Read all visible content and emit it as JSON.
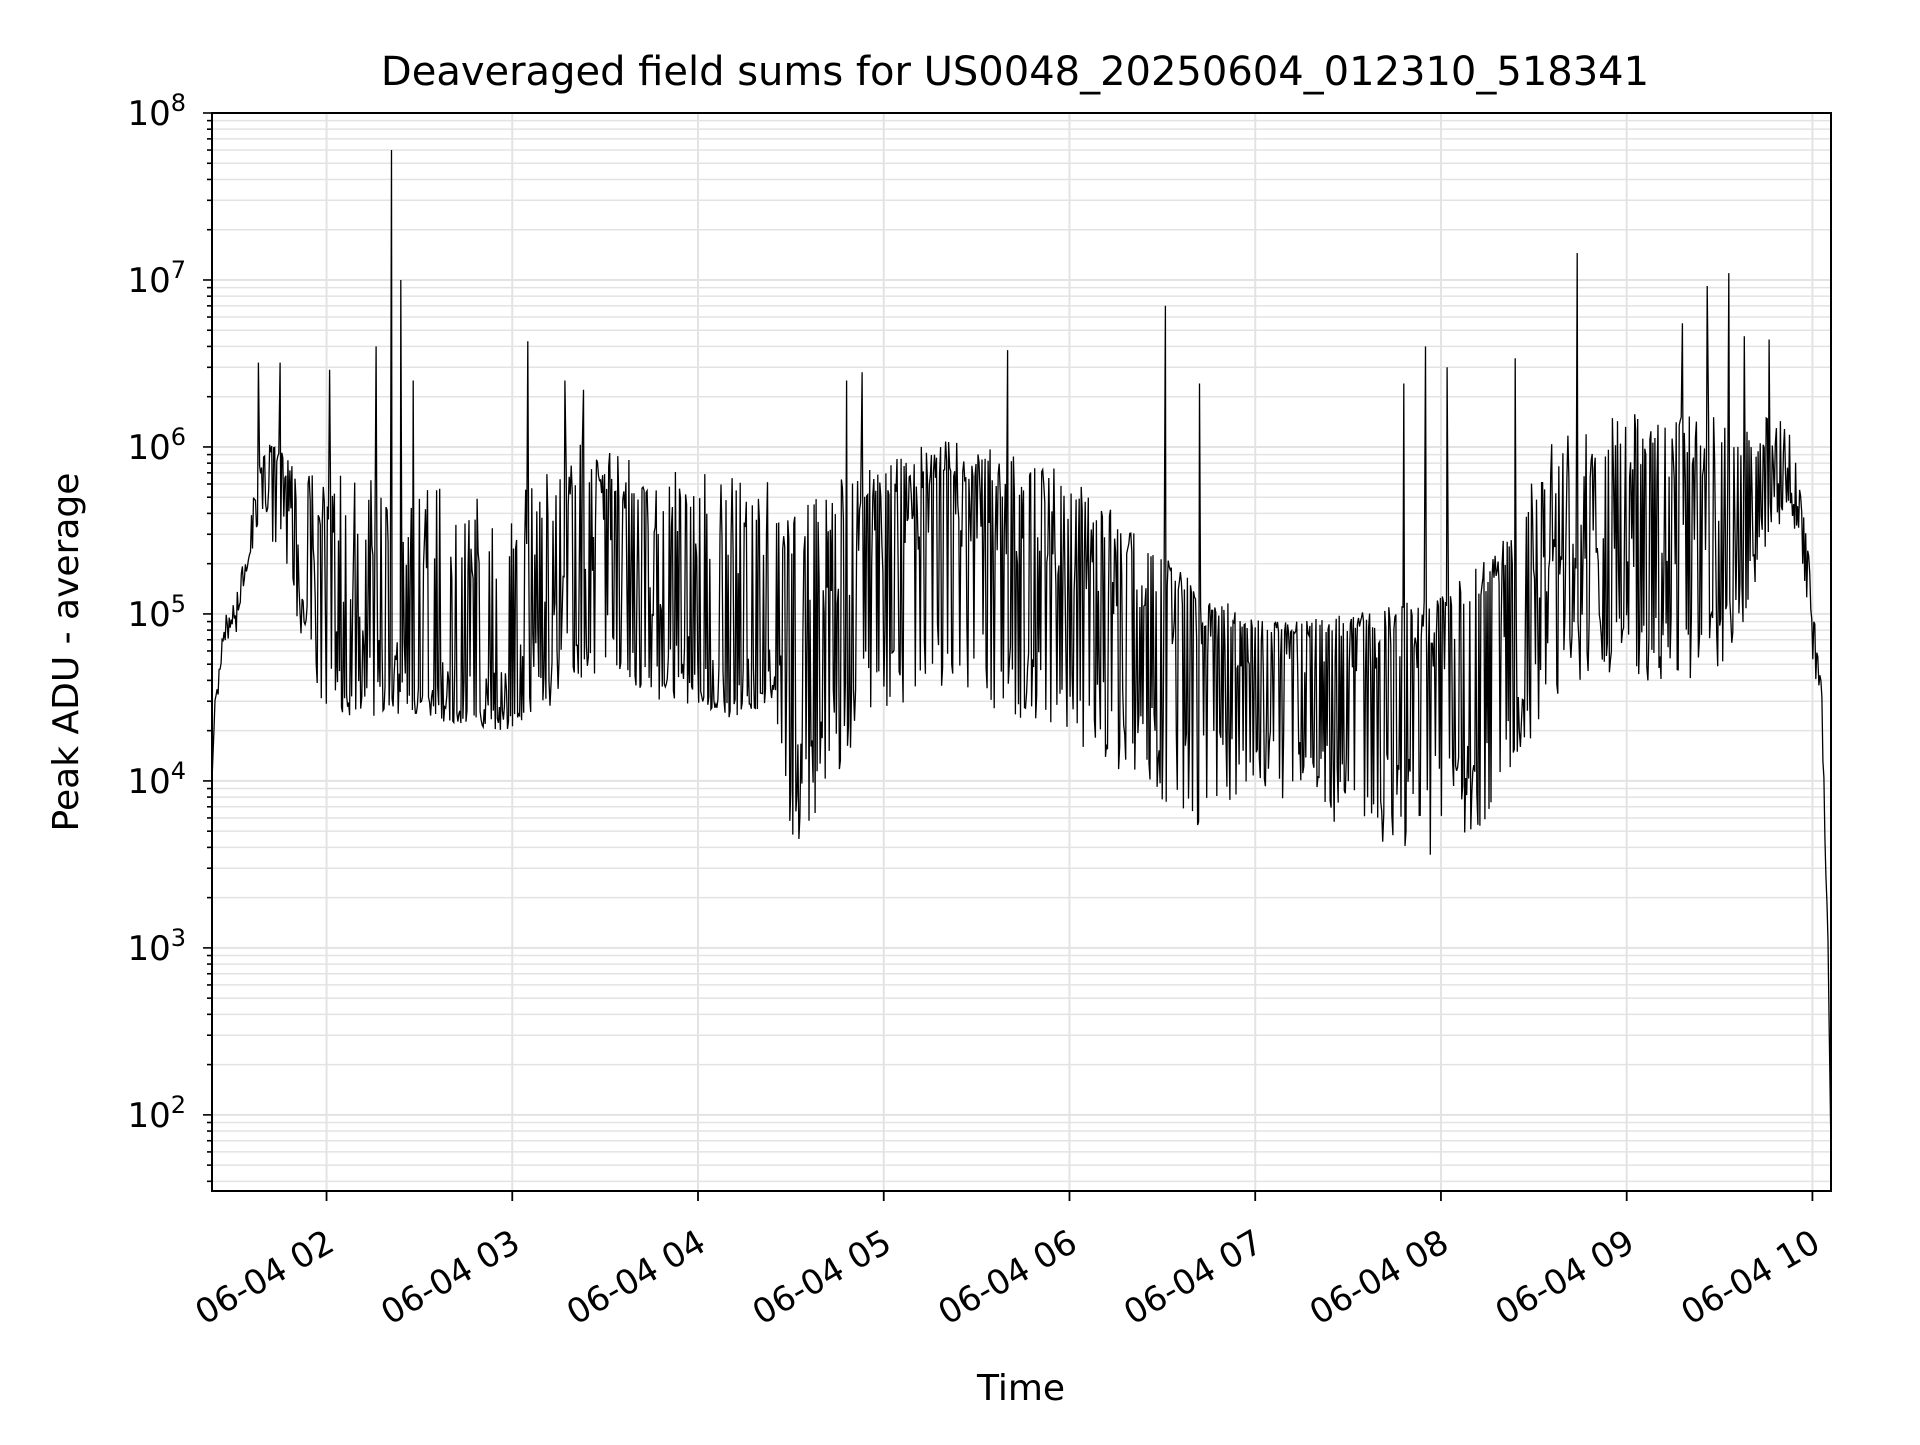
{
  "chart_data": {
    "type": "line",
    "title": "Deaveraged field sums for US0048_20250604_012310_518341",
    "xlabel": "Time",
    "ylabel": "Peak ADU - average",
    "yscale": "log",
    "ylim": [
      35,
      100000000
    ],
    "xlim": [
      "2025-06-04 01:23",
      "2025-06-04 10:06"
    ],
    "grid": true,
    "x_ticks": [
      "06-04 02",
      "06-04 03",
      "06-04 04",
      "06-04 05",
      "06-04 06",
      "06-04 07",
      "06-04 08",
      "06-04 09",
      "06-04 10"
    ],
    "y_ticks": [
      {
        "base": "10",
        "exp": "2",
        "value": 100
      },
      {
        "base": "10",
        "exp": "3",
        "value": 1000
      },
      {
        "base": "10",
        "exp": "4",
        "value": 10000
      },
      {
        "base": "10",
        "exp": "5",
        "value": 100000
      },
      {
        "base": "10",
        "exp": "6",
        "value": 1000000
      },
      {
        "base": "10",
        "exp": "7",
        "value": 10000000
      },
      {
        "base": "10",
        "exp": "8",
        "value": 100000000
      }
    ],
    "series": [
      {
        "color": "#000000",
        "baseline": [
          [
            "2025-06-04 01:23",
            10000
          ],
          [
            "2025-06-04 01:24",
            30000
          ],
          [
            "2025-06-04 01:27",
            70000
          ],
          [
            "2025-06-04 01:32",
            120000
          ],
          [
            "2025-06-04 01:36",
            300000
          ],
          [
            "2025-06-04 01:40",
            700000
          ],
          [
            "2025-06-04 01:45",
            600000
          ],
          [
            "2025-06-04 01:50",
            350000
          ],
          [
            "2025-06-04 01:55",
            200000
          ],
          [
            "2025-06-04 02:00",
            120000
          ],
          [
            "2025-06-04 02:10",
            80000
          ],
          [
            "2025-06-04 02:20",
            60000
          ],
          [
            "2025-06-04 02:30",
            45000
          ],
          [
            "2025-06-04 02:45",
            38000
          ],
          [
            "2025-06-04 03:00",
            40000
          ],
          [
            "2025-06-04 03:10",
            80000
          ],
          [
            "2025-06-04 03:20",
            200000
          ],
          [
            "2025-06-04 03:30",
            300000
          ],
          [
            "2025-06-04 03:40",
            150000
          ],
          [
            "2025-06-04 03:50",
            80000
          ],
          [
            "2025-06-04 04:00",
            45000
          ],
          [
            "2025-06-04 04:10",
            38000
          ],
          [
            "2025-06-04 04:25",
            45000
          ],
          [
            "2025-06-04 04:40",
            120000
          ],
          [
            "2025-06-04 05:00",
            250000
          ],
          [
            "2025-06-04 05:20",
            350000
          ],
          [
            "2025-06-04 05:40",
            250000
          ],
          [
            "2025-06-04 06:00",
            180000
          ],
          [
            "2025-06-04 06:20",
            120000
          ],
          [
            "2025-06-04 06:40",
            80000
          ],
          [
            "2025-06-04 07:00",
            60000
          ],
          [
            "2025-06-04 07:30",
            55000
          ],
          [
            "2025-06-04 08:00",
            65000
          ],
          [
            "2025-06-04 08:20",
            80000
          ],
          [
            "2025-06-04 08:40",
            250000
          ],
          [
            "2025-06-04 09:00",
            250000
          ],
          [
            "2025-06-04 09:20",
            250000
          ],
          [
            "2025-06-04 09:35",
            300000
          ],
          [
            "2025-06-04 09:45",
            600000
          ],
          [
            "2025-06-04 09:53",
            800000
          ],
          [
            "2025-06-04 09:58",
            200000
          ],
          [
            "2025-06-04 10:00",
            80000
          ],
          [
            "2025-06-04 10:03",
            30000
          ],
          [
            "2025-06-04 10:05",
            1000
          ],
          [
            "2025-06-04 10:06",
            60
          ]
        ],
        "envelope": [
          [
            "2025-06-04 01:23",
            0.0,
            0.0
          ],
          [
            "2025-06-04 01:35",
            0.2,
            0.05
          ],
          [
            "2025-06-04 01:45",
            0.2,
            0.5
          ],
          [
            "2025-06-04 02:00",
            0.8,
            0.7
          ],
          [
            "2025-06-04 02:30",
            1.2,
            0.25
          ],
          [
            "2025-06-04 03:00",
            1.2,
            0.3
          ],
          [
            "2025-06-04 03:30",
            0.5,
            0.9
          ],
          [
            "2025-06-04 04:00",
            1.3,
            0.2
          ],
          [
            "2025-06-04 04:25",
            1.2,
            0.2
          ],
          [
            "2025-06-04 04:30",
            0.8,
            1.3
          ],
          [
            "2025-06-04 05:00",
            0.5,
            1.0
          ],
          [
            "2025-06-04 06:00",
            0.6,
            1.0
          ],
          [
            "2025-06-04 06:40",
            0.3,
            1.2
          ],
          [
            "2025-06-04 07:00",
            0.2,
            0.8
          ],
          [
            "2025-06-04 08:00",
            0.3,
            1.3
          ],
          [
            "2025-06-04 08:40",
            0.8,
            0.8
          ],
          [
            "2025-06-04 09:30",
            0.8,
            0.8
          ],
          [
            "2025-06-04 09:50",
            0.3,
            0.3
          ],
          [
            "2025-06-04 10:00",
            0.2,
            0.2
          ],
          [
            "2025-06-04 10:06",
            0.0,
            0.0
          ]
        ],
        "spikes": [
          [
            "2025-06-04 01:38",
            3200000
          ],
          [
            "2025-06-04 01:45",
            3200000
          ],
          [
            "2025-06-04 02:01",
            2900000
          ],
          [
            "2025-06-04 02:16",
            4000000
          ],
          [
            "2025-06-04 02:21",
            60000000
          ],
          [
            "2025-06-04 02:24",
            10000000
          ],
          [
            "2025-06-04 02:28",
            2500000
          ],
          [
            "2025-06-04 03:05",
            4300000
          ],
          [
            "2025-06-04 03:17",
            2500000
          ],
          [
            "2025-06-04 03:23",
            2200000
          ],
          [
            "2025-06-04 04:48",
            2500000
          ],
          [
            "2025-06-04 04:53",
            2800000
          ],
          [
            "2025-06-04 05:40",
            3800000
          ],
          [
            "2025-06-04 06:31",
            7000000
          ],
          [
            "2025-06-04 06:42",
            2400000
          ],
          [
            "2025-06-04 07:48",
            2400000
          ],
          [
            "2025-06-04 07:55",
            4000000
          ],
          [
            "2025-06-04 08:02",
            3000000
          ],
          [
            "2025-06-04 08:24",
            3400000
          ],
          [
            "2025-06-04 08:44",
            14500000
          ],
          [
            "2025-06-04 09:18",
            5500000
          ],
          [
            "2025-06-04 09:26",
            9200000
          ],
          [
            "2025-06-04 09:33",
            11000000
          ],
          [
            "2025-06-04 09:38",
            4600000
          ],
          [
            "2025-06-04 09:46",
            4400000
          ]
        ]
      }
    ]
  }
}
